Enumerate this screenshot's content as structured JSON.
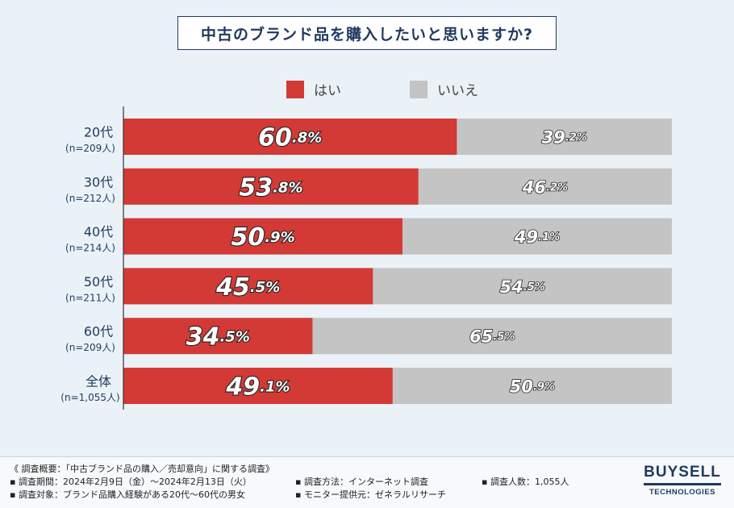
{
  "chart_data": {
    "type": "bar",
    "orientation": "horizontal",
    "stacked": true,
    "title": "中古のブランド品を購入したいと思いますか?",
    "categories": [
      "20代",
      "30代",
      "40代",
      "50代",
      "60代",
      "全体"
    ],
    "sample_sizes": [
      "(n=209人)",
      "(n=212人)",
      "(n=214人)",
      "(n=211人)",
      "(n=209人)",
      "(n=1,055人)"
    ],
    "series": [
      {
        "name": "はい",
        "color": "#d43a35",
        "values": [
          60.8,
          53.8,
          50.9,
          45.5,
          34.5,
          49.1
        ]
      },
      {
        "name": "いいえ",
        "color": "#c4c4c4",
        "values": [
          39.2,
          46.2,
          49.1,
          54.5,
          65.5,
          50.9
        ]
      }
    ],
    "xlim": [
      0,
      100
    ],
    "legend": "top"
  },
  "footer": {
    "overview": "《 調査概要：「中古ブランド品の購入／売却意向」に関する調査》",
    "period": "▪ 調査期間：2024年2月9日（金）〜2024年2月13日（火）",
    "target": "▪ 調査対象：ブランド品購入経験がある20代〜60代の男女",
    "method": "▪ 調査方法：インターネット調査",
    "provider": "▪ モニター提供元：ゼネラルリサーチ",
    "count": "▪ 調査人数：1,055人"
  },
  "logo": {
    "main": "BUYSELL",
    "sub": "TECHNOLOGIES"
  }
}
